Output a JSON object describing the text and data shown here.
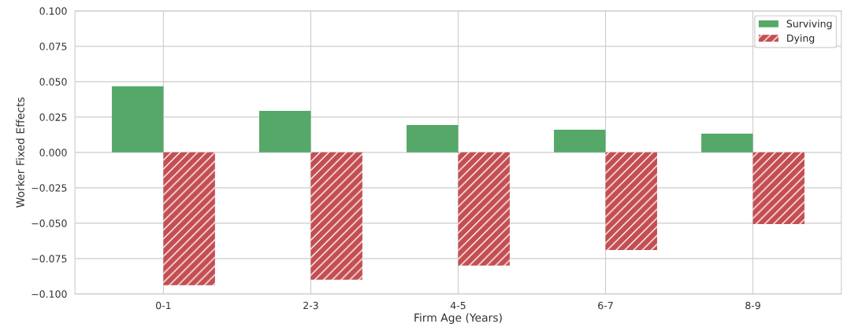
{
  "chart_data": {
    "type": "bar",
    "xlabel": "Firm Age (Years)",
    "ylabel": "Worker Fixed Effects",
    "categories": [
      "0-1",
      "2-3",
      "4-5",
      "6-7",
      "8-9"
    ],
    "series": [
      {
        "name": "Surviving",
        "color": "#55a868",
        "values": [
          0.0467,
          0.0294,
          0.0194,
          0.0161,
          0.0133
        ]
      },
      {
        "name": "Dying",
        "color": "#c44e52",
        "values": [
          -0.0939,
          -0.09,
          -0.08,
          -0.0689,
          -0.0506
        ]
      }
    ],
    "ylim": [
      -0.1,
      0.1
    ],
    "yticks": [
      {
        "value": -0.1,
        "label": "−0.100"
      },
      {
        "value": -0.075,
        "label": "−0.075"
      },
      {
        "value": -0.05,
        "label": "−0.050"
      },
      {
        "value": -0.025,
        "label": "−0.025"
      },
      {
        "value": 0,
        "label": "0.000"
      },
      {
        "value": 0.025,
        "label": "0.025"
      },
      {
        "value": 0.05,
        "label": "0.050"
      },
      {
        "value": 0.075,
        "label": "0.075"
      },
      {
        "value": 0.1,
        "label": "0.100"
      }
    ],
    "grid": true,
    "legend": "top right"
  }
}
